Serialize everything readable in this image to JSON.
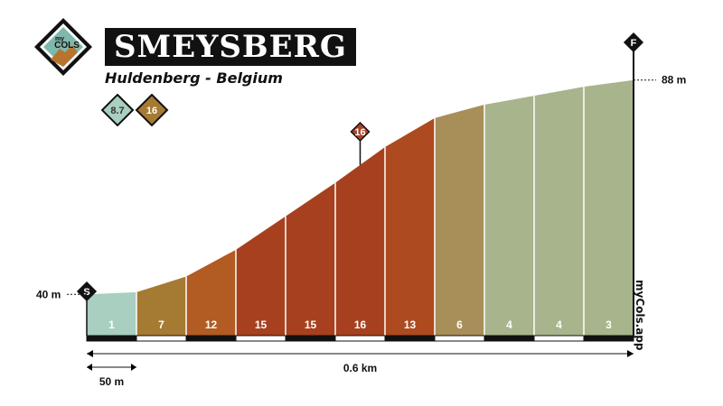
{
  "header": {
    "logo_text_small": "my",
    "logo_text": "COLS",
    "title": "SMEYSBERG",
    "subtitle": "Huldenberg - Belgium",
    "badges": [
      {
        "value": "8.7",
        "color": "#a8cfc0",
        "text_color": "#333333"
      },
      {
        "value": "16",
        "color": "#a57a32",
        "text_color": "#ffffff"
      }
    ]
  },
  "chart_data": {
    "type": "area",
    "segment_length_m": 50,
    "total_distance_label": "0.6 km",
    "segment_length_label": "50 m",
    "start_elevation_label": "40 m",
    "end_elevation_label": "88 m",
    "start_marker": "S",
    "finish_marker": "F",
    "max_gradient_marker": {
      "label": "16",
      "segment_index": 5,
      "color": "#a9412a"
    },
    "watermark": "myCols.app",
    "elevations": [
      40,
      40.5,
      44,
      50,
      57.5,
      65,
      73,
      79.5,
      82.5,
      84.5,
      86.5,
      88
    ],
    "ylim": [
      34,
      93
    ],
    "segments": [
      {
        "gradient": "1",
        "color": "#a8cfc0"
      },
      {
        "gradient": "7",
        "color": "#a57a32"
      },
      {
        "gradient": "12",
        "color": "#b25b22"
      },
      {
        "gradient": "15",
        "color": "#a7401e"
      },
      {
        "gradient": "15",
        "color": "#a7401e"
      },
      {
        "gradient": "16",
        "color": "#a7401e"
      },
      {
        "gradient": "13",
        "color": "#ad4a1f"
      },
      {
        "gradient": "6",
        "color": "#a88e58"
      },
      {
        "gradient": "4",
        "color": "#a7b48c"
      },
      {
        "gradient": "4",
        "color": "#a7b48c"
      },
      {
        "gradient": "3",
        "color": "#a7b48c"
      }
    ]
  }
}
